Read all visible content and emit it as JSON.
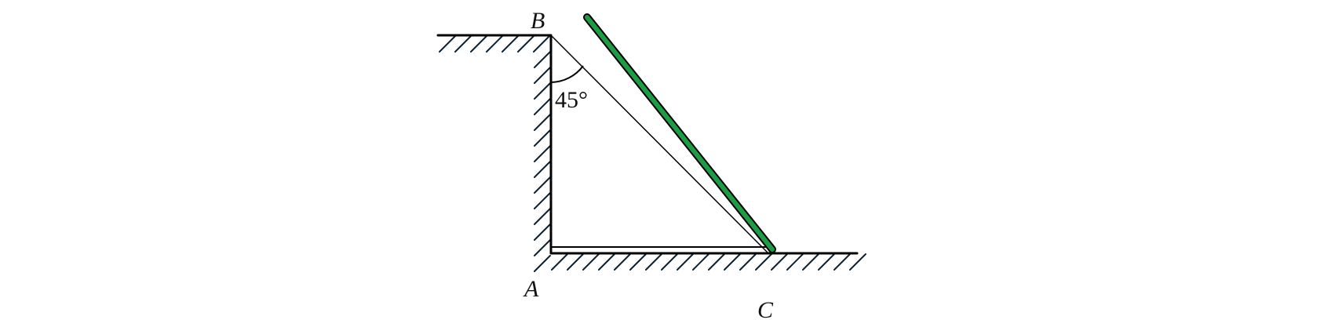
{
  "labels": {
    "point_b": "B",
    "point_a": "A",
    "point_c": "C",
    "angle": "45°"
  },
  "colors": {
    "rod": "#1e9c45",
    "line": "#000000",
    "hatch": "#0d2233"
  }
}
